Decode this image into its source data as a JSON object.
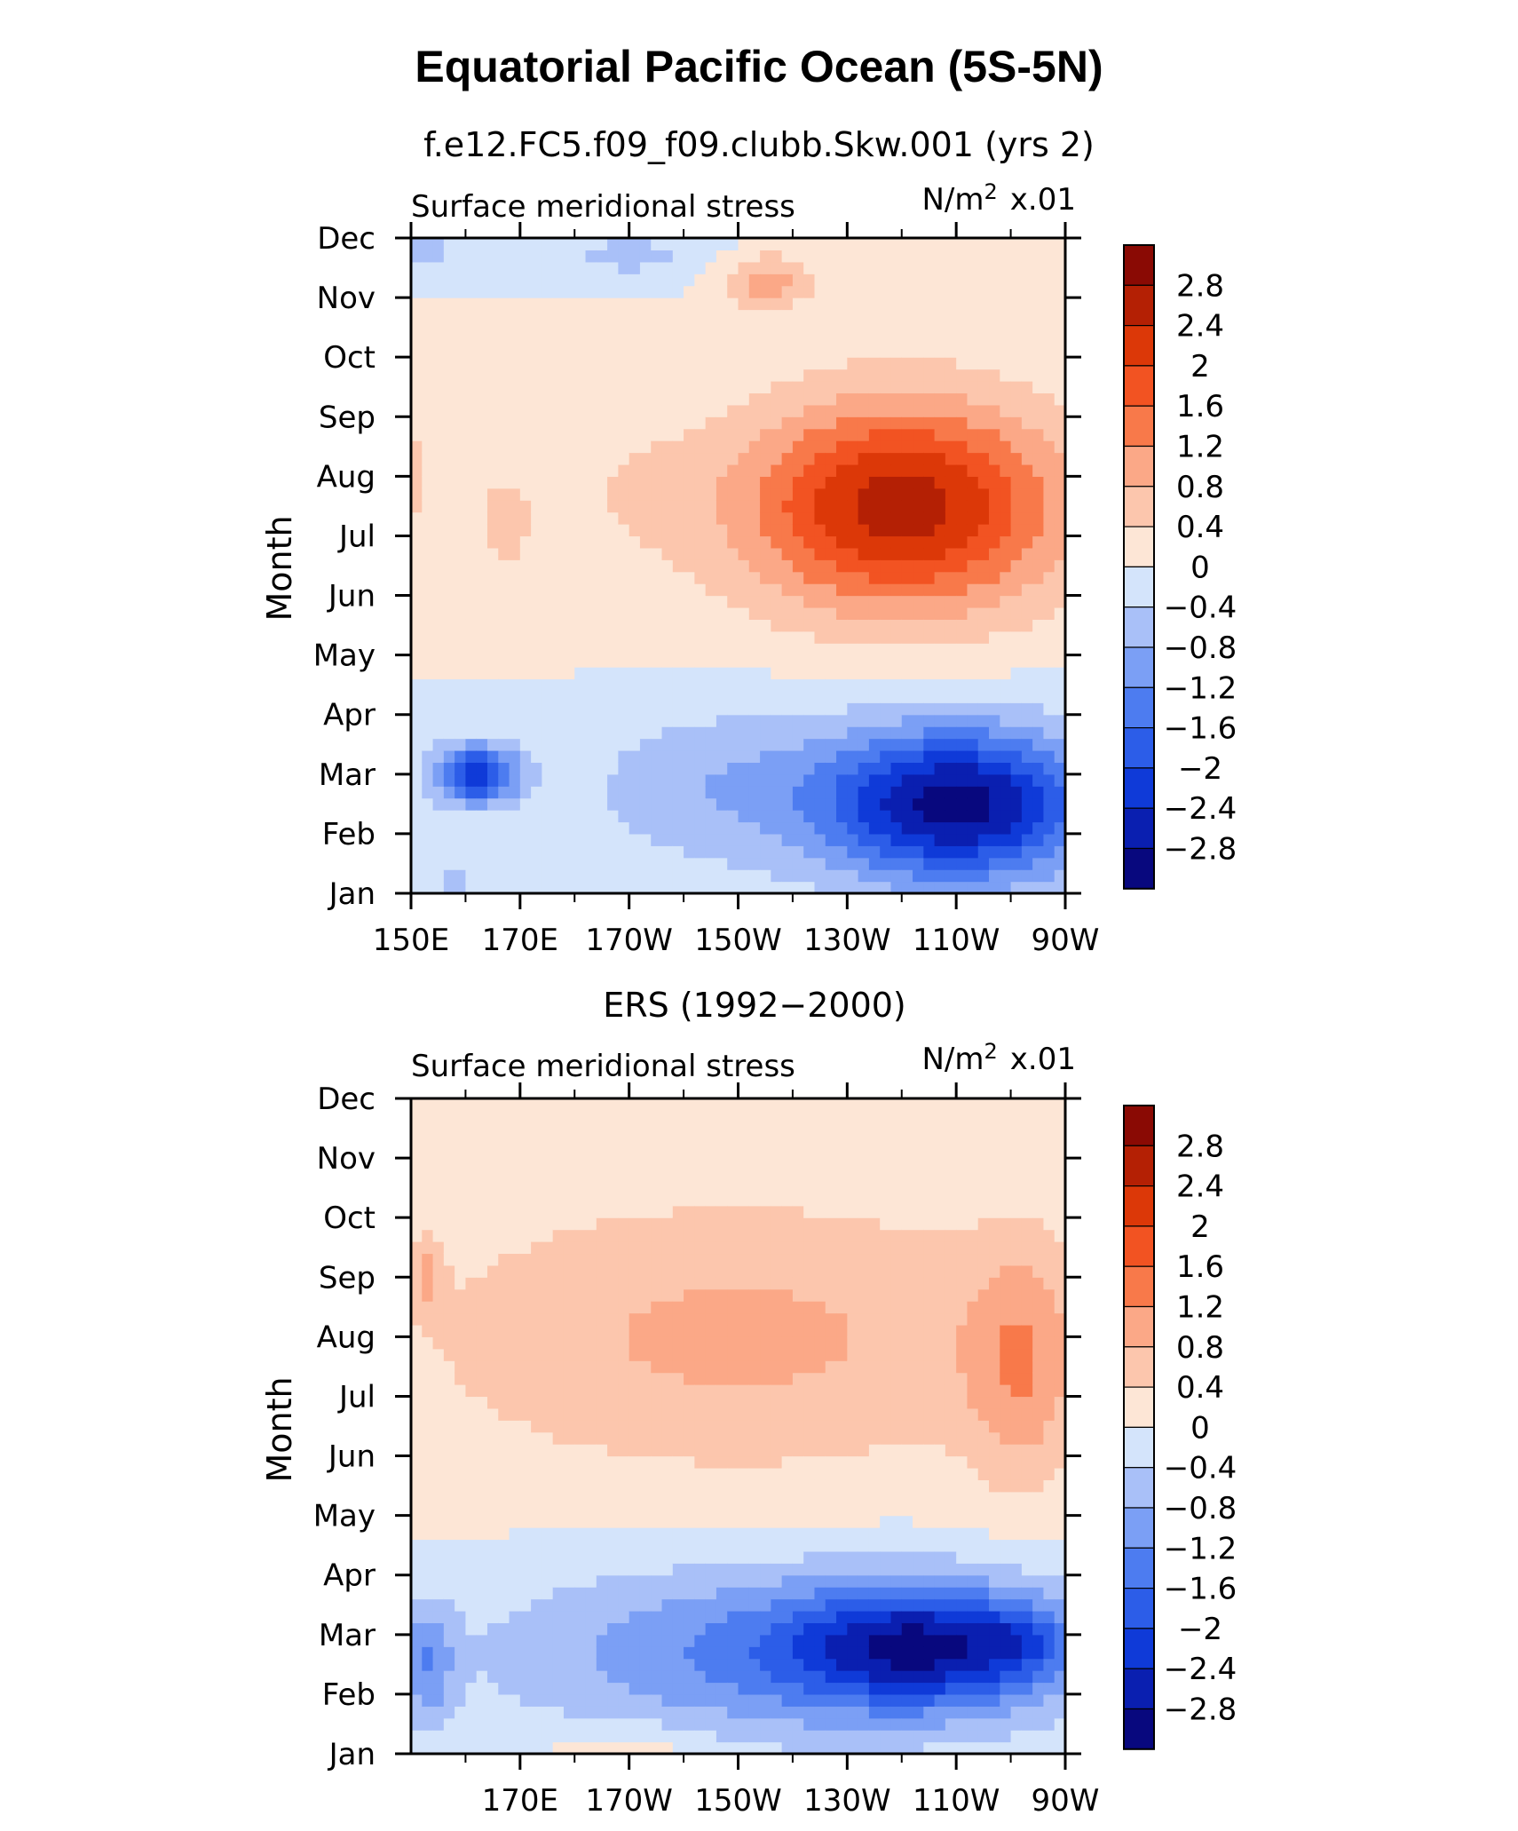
{
  "figure": {
    "title": "Equatorial Pacific Ocean (5S-5N)"
  },
  "chart_data": [
    {
      "type": "heatmap",
      "panel": "model",
      "subtitle": "f.e12.FC5.f09_f09.clubb.Skw.001 (yrs 2)",
      "left_string": "Surface meridional stress",
      "right_string_units": "N/m",
      "right_string_exponent": "2",
      "right_string_scale": "x.01",
      "xlabel": "",
      "ylabel": "Month",
      "x_tick_labels": [
        "150E",
        "170E",
        "170W",
        "150W",
        "130W",
        "110W",
        "90W"
      ],
      "y_tick_labels": [
        "Jan",
        "Feb",
        "Mar",
        "Apr",
        "May",
        "Jun",
        "Jul",
        "Aug",
        "Sep",
        "Oct",
        "Nov",
        "Dec"
      ],
      "xlim": [
        150,
        270
      ],
      "ylim": [
        1,
        12
      ],
      "colorbar_levels": [
        -2.8,
        -2.4,
        -2,
        -1.6,
        -1.2,
        -0.8,
        -0.4,
        0,
        0.4,
        0.8,
        1.2,
        1.6,
        2,
        2.4,
        2.8
      ],
      "colorbar_labels": [
        "2.8",
        "2.4",
        "2",
        "1.6",
        "1.2",
        "0.8",
        "0.4",
        "0",
        "−0.4",
        "−0.8",
        "−1.2",
        "−1.6",
        "−2",
        "−2.4",
        "−2.8"
      ],
      "features": [
        {
          "lon": 240,
          "month": 7.5,
          "value": 2.6,
          "spread_lon": 30,
          "spread_month": 1.8
        },
        {
          "lon": 185,
          "month": 7.8,
          "value": 0.3,
          "spread_lon": 18,
          "spread_month": 2.2
        },
        {
          "lon": 215,
          "month": 11.3,
          "value": 1.0,
          "spread_lon": 9,
          "spread_month": 0.5
        },
        {
          "lon": 150,
          "month": 8.0,
          "value": 0.5,
          "spread_lon": 5,
          "spread_month": 1.2
        },
        {
          "lon": 167,
          "month": 7.2,
          "value": 0.5,
          "spread_lon": 5,
          "spread_month": 0.9
        },
        {
          "lon": 250,
          "month": 2.5,
          "value": -3.0,
          "spread_lon": 25,
          "spread_month": 1.3
        },
        {
          "lon": 162,
          "month": 3.0,
          "value": -2.3,
          "spread_lon": 8,
          "spread_month": 0.5
        },
        {
          "lon": 205,
          "month": 2.8,
          "value": -0.7,
          "spread_lon": 25,
          "spread_month": 1.4
        },
        {
          "lon": 158,
          "month": 1.1,
          "value": -0.5,
          "spread_lon": 4,
          "spread_month": 0.5
        },
        {
          "lon": 190,
          "month": 11.7,
          "value": -0.5,
          "spread_lon": 20,
          "spread_month": 0.5
        },
        {
          "lon": 153,
          "month": 11.8,
          "value": -0.7,
          "spread_lon": 3,
          "spread_month": 0.3
        }
      ]
    },
    {
      "type": "heatmap",
      "panel": "observations",
      "subtitle": "ERS (1992−2000)",
      "left_string": "Surface meridional stress",
      "right_string_units": "N/m",
      "right_string_exponent": "2",
      "right_string_scale": "x.01",
      "xlabel": "",
      "ylabel": "Month",
      "x_tick_labels": [
        "170E",
        "170W",
        "150W",
        "130W",
        "110W",
        "90W"
      ],
      "y_tick_labels": [
        "Jan",
        "Feb",
        "Mar",
        "Apr",
        "May",
        "Jun",
        "Jul",
        "Aug",
        "Sep",
        "Oct",
        "Nov",
        "Dec"
      ],
      "xlim": [
        150,
        270
      ],
      "ylim": [
        1,
        12
      ],
      "colorbar_levels": [
        -2.8,
        -2.4,
        -2,
        -1.6,
        -1.2,
        -0.8,
        -0.4,
        0,
        0.4,
        0.8,
        1.2,
        1.6,
        2,
        2.4,
        2.8
      ],
      "colorbar_labels": [
        "2.8",
        "2.4",
        "2",
        "1.6",
        "1.2",
        "0.8",
        "0.4",
        "0",
        "−0.4",
        "−0.8",
        "−1.2",
        "−1.6",
        "−2",
        "−2.4",
        "−2.8"
      ],
      "features": [
        {
          "lon": 210,
          "month": 8.0,
          "value": 0.9,
          "spread_lon": 60,
          "spread_month": 2.4
        },
        {
          "lon": 262,
          "month": 7.5,
          "value": 0.9,
          "spread_lon": 10,
          "spread_month": 2.0
        },
        {
          "lon": 153,
          "month": 9.0,
          "value": 0.7,
          "spread_lon": 3,
          "spread_month": 0.6
        },
        {
          "lon": 245,
          "month": 2.8,
          "value": -2.2,
          "spread_lon": 25,
          "spread_month": 1.0
        },
        {
          "lon": 262,
          "month": 2.9,
          "value": -0.6,
          "spread_lon": 8,
          "spread_month": 0.5
        },
        {
          "lon": 215,
          "month": 2.7,
          "value": -1.2,
          "spread_lon": 50,
          "spread_month": 1.5
        },
        {
          "lon": 153,
          "month": 2.5,
          "value": -1.0,
          "spread_lon": 5,
          "spread_month": 1.0
        },
        {
          "lon": 190,
          "month": 1.0,
          "value": 0.5,
          "spread_lon": 15,
          "spread_month": 0.5
        }
      ]
    }
  ]
}
